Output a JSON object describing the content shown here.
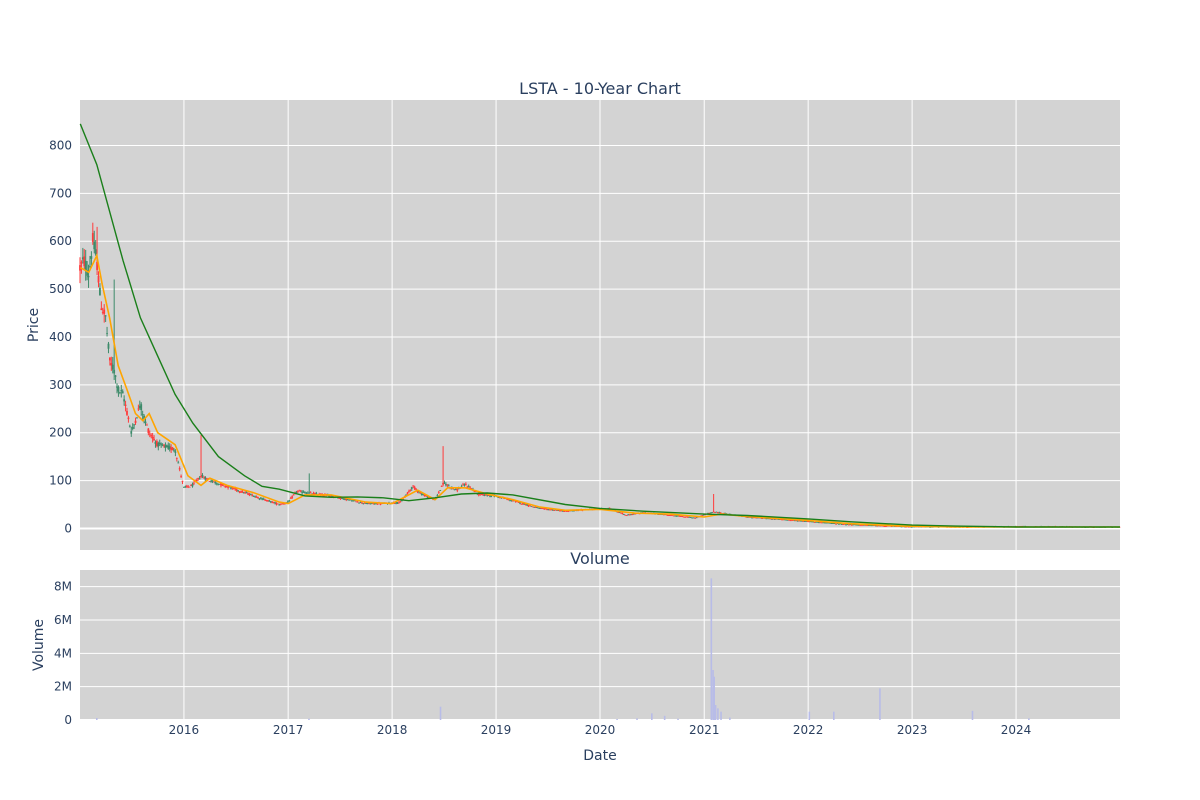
{
  "chart_data": [
    {
      "type": "candlestick",
      "title": "LSTA - 10-Year Chart",
      "xlabel": "",
      "ylabel": "Price",
      "ylim": [
        -45,
        895
      ],
      "yticks": [
        0,
        100,
        200,
        300,
        400,
        500,
        600,
        700,
        800
      ],
      "ytick_labels": [
        "0",
        "100",
        "200",
        "300",
        "400",
        "500",
        "600",
        "700",
        "800"
      ],
      "grid": true,
      "colors": {
        "increasing": "#3d8b6a",
        "decreasing": "#ff3b3b",
        "background": "#d3d3d3",
        "grid": "#ffffff"
      },
      "anchors": [
        [
          "2015-01-02",
          545
        ],
        [
          "2015-01-15",
          560
        ],
        [
          "2015-02-01",
          530
        ],
        [
          "2015-02-15",
          600
        ],
        [
          "2015-03-01",
          560
        ],
        [
          "2015-03-15",
          470
        ],
        [
          "2015-04-01",
          440
        ],
        [
          "2015-04-15",
          350
        ],
        [
          "2015-05-01",
          330
        ],
        [
          "2015-05-15",
          290
        ],
        [
          "2015-06-01",
          280
        ],
        [
          "2015-07-01",
          200
        ],
        [
          "2015-08-01",
          260
        ],
        [
          "2015-08-15",
          230
        ],
        [
          "2015-09-01",
          200
        ],
        [
          "2015-10-01",
          175
        ],
        [
          "2015-12-01",
          165
        ],
        [
          "2016-01-01",
          85
        ],
        [
          "2016-02-01",
          90
        ],
        [
          "2016-03-01",
          110
        ],
        [
          "2016-04-01",
          100
        ],
        [
          "2016-06-01",
          88
        ],
        [
          "2016-08-01",
          75
        ],
        [
          "2016-10-01",
          62
        ],
        [
          "2016-12-01",
          50
        ],
        [
          "2017-01-01",
          55
        ],
        [
          "2017-02-01",
          78
        ],
        [
          "2017-04-01",
          72
        ],
        [
          "2017-06-01",
          68
        ],
        [
          "2017-08-01",
          60
        ],
        [
          "2017-10-01",
          52
        ],
        [
          "2017-12-01",
          52
        ],
        [
          "2018-02-01",
          55
        ],
        [
          "2018-03-15",
          88
        ],
        [
          "2018-04-15",
          72
        ],
        [
          "2018-06-01",
          60
        ],
        [
          "2018-07-01",
          95
        ],
        [
          "2018-08-15",
          80
        ],
        [
          "2018-09-15",
          92
        ],
        [
          "2018-11-01",
          72
        ],
        [
          "2019-01-01",
          68
        ],
        [
          "2019-03-01",
          58
        ],
        [
          "2019-06-01",
          42
        ],
        [
          "2019-09-01",
          36
        ],
        [
          "2019-12-01",
          40
        ],
        [
          "2020-02-01",
          42
        ],
        [
          "2020-04-01",
          28
        ],
        [
          "2020-06-01",
          33
        ],
        [
          "2020-09-01",
          28
        ],
        [
          "2020-12-01",
          22
        ],
        [
          "2021-02-01",
          35
        ],
        [
          "2021-06-01",
          24
        ],
        [
          "2021-12-01",
          16
        ],
        [
          "2022-06-01",
          8
        ],
        [
          "2022-12-01",
          4
        ],
        [
          "2023-06-01",
          3
        ],
        [
          "2024-01-01",
          4
        ],
        [
          "2024-12-31",
          3
        ]
      ],
      "spikes": [
        [
          "2015-02-15",
          635
        ],
        [
          "2015-03-01",
          630
        ],
        [
          "2015-05-01",
          520
        ],
        [
          "2016-03-01",
          195
        ],
        [
          "2017-03-15",
          115
        ],
        [
          "2018-07-01",
          172
        ],
        [
          "2021-02-01",
          72
        ]
      ],
      "ma_short": {
        "color": "#ffa500",
        "points": [
          [
            "2015-01-02",
            545
          ],
          [
            "2015-02-01",
            535
          ],
          [
            "2015-03-01",
            570
          ],
          [
            "2015-03-20",
            510
          ],
          [
            "2015-04-15",
            440
          ],
          [
            "2015-05-15",
            340
          ],
          [
            "2015-06-15",
            290
          ],
          [
            "2015-07-15",
            240
          ],
          [
            "2015-08-10",
            225
          ],
          [
            "2015-09-01",
            240
          ],
          [
            "2015-10-01",
            200
          ],
          [
            "2015-12-01",
            175
          ],
          [
            "2016-01-15",
            110
          ],
          [
            "2016-03-01",
            90
          ],
          [
            "2016-04-01",
            105
          ],
          [
            "2016-06-01",
            90
          ],
          [
            "2016-09-01",
            75
          ],
          [
            "2016-12-01",
            55
          ],
          [
            "2017-01-01",
            52
          ],
          [
            "2017-03-01",
            70
          ],
          [
            "2017-06-01",
            70
          ],
          [
            "2017-10-01",
            55
          ],
          [
            "2018-01-01",
            52
          ],
          [
            "2018-04-01",
            80
          ],
          [
            "2018-06-01",
            60
          ],
          [
            "2018-07-15",
            85
          ],
          [
            "2018-09-15",
            85
          ],
          [
            "2018-12-01",
            72
          ],
          [
            "2019-03-01",
            60
          ],
          [
            "2019-06-01",
            45
          ],
          [
            "2019-09-01",
            38
          ],
          [
            "2020-01-01",
            40
          ],
          [
            "2020-05-01",
            32
          ],
          [
            "2020-09-01",
            30
          ],
          [
            "2021-01-01",
            24
          ],
          [
            "2021-03-01",
            30
          ],
          [
            "2021-06-01",
            25
          ],
          [
            "2021-12-01",
            18
          ],
          [
            "2022-06-01",
            10
          ],
          [
            "2022-12-01",
            5
          ],
          [
            "2023-06-01",
            3
          ],
          [
            "2024-12-31",
            3
          ]
        ]
      },
      "ma_long": {
        "color": "#1a7f1a",
        "points": [
          [
            "2015-01-02",
            845
          ],
          [
            "2015-03-01",
            760
          ],
          [
            "2015-06-01",
            560
          ],
          [
            "2015-08-01",
            440
          ],
          [
            "2015-10-01",
            360
          ],
          [
            "2015-12-01",
            280
          ],
          [
            "2016-02-01",
            220
          ],
          [
            "2016-05-01",
            150
          ],
          [
            "2016-08-01",
            110
          ],
          [
            "2016-10-01",
            88
          ],
          [
            "2016-12-01",
            82
          ],
          [
            "2017-03-01",
            68
          ],
          [
            "2017-06-01",
            65
          ],
          [
            "2017-09-01",
            66
          ],
          [
            "2017-12-01",
            64
          ],
          [
            "2018-03-01",
            58
          ],
          [
            "2018-06-01",
            64
          ],
          [
            "2018-09-01",
            72
          ],
          [
            "2018-12-01",
            74
          ],
          [
            "2019-03-01",
            70
          ],
          [
            "2019-09-01",
            50
          ],
          [
            "2020-01-01",
            42
          ],
          [
            "2020-06-01",
            36
          ],
          [
            "2021-01-01",
            30
          ],
          [
            "2021-06-01",
            27
          ],
          [
            "2022-01-01",
            20
          ],
          [
            "2022-06-01",
            14
          ],
          [
            "2023-01-01",
            7
          ],
          [
            "2023-06-01",
            5
          ],
          [
            "2024-01-01",
            3
          ],
          [
            "2024-12-31",
            3
          ]
        ]
      }
    },
    {
      "type": "bar",
      "title": "Volume",
      "xlabel": "Date",
      "ylabel": "Volume",
      "ylim": [
        0,
        9000000
      ],
      "yticks": [
        0,
        2000000,
        4000000,
        6000000,
        8000000
      ],
      "ytick_labels": [
        "0",
        "2M",
        "4M",
        "6M",
        "8M"
      ],
      "xlim": [
        "2015-01-01",
        "2024-12-31"
      ],
      "xticks": [
        "2016-01-01",
        "2017-01-01",
        "2018-01-01",
        "2019-01-01",
        "2020-01-01",
        "2021-01-01",
        "2022-01-01",
        "2023-01-01",
        "2024-01-01"
      ],
      "xtick_labels": [
        "2016",
        "2017",
        "2018",
        "2019",
        "2020",
        "2021",
        "2022",
        "2023",
        "2024"
      ],
      "grid": true,
      "colors": {
        "bar": "#b8bce8",
        "background": "#d3d3d3",
        "grid": "#ffffff"
      },
      "series": [
        {
          "values": [
            [
              "2015-03-01",
              120000
            ],
            [
              "2017-03-15",
              80000
            ],
            [
              "2018-06-20",
              800000
            ],
            [
              "2020-03-01",
              60000
            ],
            [
              "2020-05-10",
              100000
            ],
            [
              "2020-07-01",
              400000
            ],
            [
              "2020-08-15",
              250000
            ],
            [
              "2020-10-01",
              80000
            ],
            [
              "2021-01-26",
              8500000
            ],
            [
              "2021-02-01",
              3000000
            ],
            [
              "2021-02-05",
              2600000
            ],
            [
              "2021-02-10",
              900000
            ],
            [
              "2021-02-18",
              700000
            ],
            [
              "2021-03-01",
              500000
            ],
            [
              "2021-04-01",
              150000
            ],
            [
              "2022-01-05",
              500000
            ],
            [
              "2022-04-01",
              500000
            ],
            [
              "2022-09-10",
              1900000
            ],
            [
              "2023-08-01",
              550000
            ],
            [
              "2024-02-15",
              100000
            ]
          ]
        }
      ]
    }
  ]
}
